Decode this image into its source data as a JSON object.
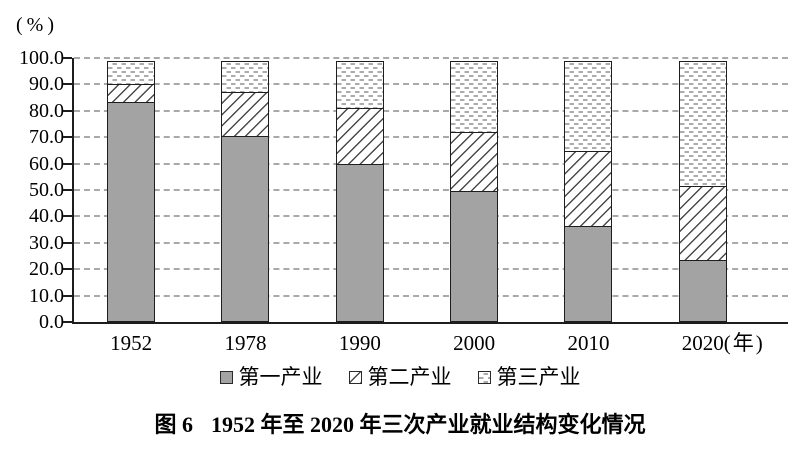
{
  "caption": {
    "prefix": "图 6",
    "text": "1952 年至 2020 年三次产业就业结构变化情况"
  },
  "chart_data": {
    "type": "bar",
    "stacked": true,
    "title": "图 6 1952 年至 2020 年三次产业就业结构变化情况",
    "categories": [
      "1952",
      "1978",
      "1990",
      "2000",
      "2010",
      "2020"
    ],
    "series": [
      {
        "name": "第一产业",
        "key": "primary",
        "pattern": "solid-gray",
        "color": "#a3a3a3",
        "values": [
          83.5,
          70.5,
          60.1,
          50.0,
          36.7,
          23.6
        ]
      },
      {
        "name": "第二产业",
        "key": "secondary",
        "pattern": "diagonal-hatch",
        "color": "#ffffff",
        "values": [
          7.4,
          17.3,
          21.4,
          22.5,
          28.7,
          28.7
        ]
      },
      {
        "name": "第三产业",
        "key": "tertiary",
        "pattern": "dashed-dots",
        "color": "#ffffff",
        "values": [
          9.1,
          12.2,
          18.5,
          27.5,
          34.6,
          47.7
        ]
      }
    ],
    "y_axis": {
      "unit_label": "(%)",
      "min": 0,
      "max": 100,
      "tick_step": 10,
      "tick_labels": [
        "0.0",
        "10.0",
        "20.0",
        "30.0",
        "40.0",
        "50.0",
        "60.0",
        "70.0",
        "80.0",
        "90.0",
        "100.0"
      ]
    },
    "x_axis": {
      "unit_label": "(年)"
    },
    "grid": "horizontal-dashed",
    "legend_position": "bottom"
  }
}
